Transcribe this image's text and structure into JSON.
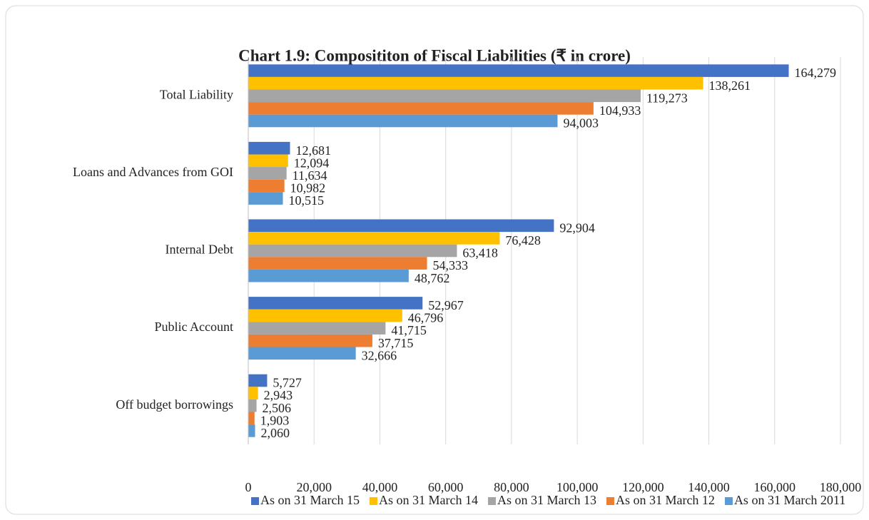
{
  "chart_data": {
    "type": "hbar",
    "title": "Chart 1.9: Composititon of Fiscal Liabilities (₹ in crore)",
    "categories": [
      "Total Liability",
      "Loans and Advances from GOI",
      "Internal Debt",
      "Public Account",
      "Off budget borrowings"
    ],
    "series": [
      {
        "name": "As on 31 March 15",
        "color": "#4472c4",
        "values": [
          164279,
          12681,
          92904,
          52967,
          5727
        ],
        "value_labels": [
          "164,279",
          "12,681",
          "92,904",
          "52,967",
          "5,727"
        ]
      },
      {
        "name": "As on 31 March 14",
        "color": "#ffc000",
        "values": [
          138261,
          12094,
          76428,
          46796,
          2943
        ],
        "value_labels": [
          "138,261",
          "12,094",
          "76,428",
          "46,796",
          "2,943"
        ]
      },
      {
        "name": "As on 31 March 13",
        "color": "#a5a5a5",
        "values": [
          119273,
          11634,
          63418,
          41715,
          2506
        ],
        "value_labels": [
          "119,273",
          "11,634",
          "63,418",
          "41,715",
          "2,506"
        ]
      },
      {
        "name": "As on 31 March 12",
        "color": "#ed7d31",
        "values": [
          104933,
          10982,
          54333,
          37715,
          1903
        ],
        "value_labels": [
          "104,933",
          "10,982",
          "54,333",
          "37,715",
          "1,903"
        ]
      },
      {
        "name": "As on 31 March 2011",
        "color": "#5b9bd5",
        "values": [
          94003,
          10515,
          48762,
          32666,
          2060
        ],
        "value_labels": [
          "94,003",
          "10,515",
          "48,762",
          "32,666",
          "2,060"
        ]
      }
    ],
    "xlim": [
      0,
      180000
    ],
    "xticks": [
      0,
      {
        "value": 20000,
        "label": "20,000"
      },
      {
        "value": 40000,
        "label": "40,000"
      },
      {
        "value": 60000,
        "label": "60,000"
      },
      {
        "value": 80000,
        "label": "80,000"
      },
      {
        "value": 100000,
        "label": "100,000"
      },
      {
        "value": 120000,
        "label": "120,000"
      },
      {
        "value": 140000,
        "label": "140,000"
      },
      {
        "value": 160000,
        "label": "160,000"
      },
      {
        "value": 180000,
        "label": "180,000"
      }
    ],
    "grid": true,
    "legend": "bottom"
  }
}
